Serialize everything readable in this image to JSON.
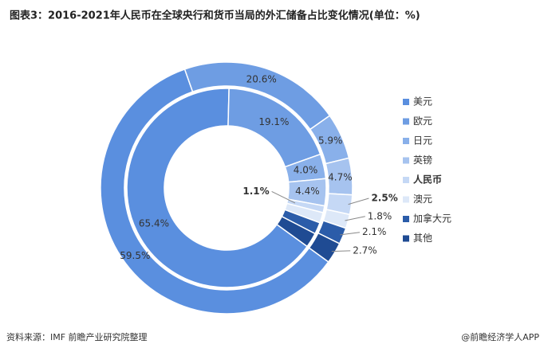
{
  "chart_data": {
    "type": "donut",
    "title": "图表3：2016-2021年人民币在全球央行和货币当局的外汇储备占比变化情况(单位：%)",
    "categories": [
      "美元",
      "欧元",
      "日元",
      "英镑",
      "人民币",
      "澳元",
      "加拿大元",
      "其他"
    ],
    "colors": [
      "#5a8fdf",
      "#6e9de3",
      "#89b0ea",
      "#a6c3ef",
      "#c5d8f5",
      "#dde8f8",
      "#2b5ca9",
      "#1f4b93"
    ],
    "series": [
      {
        "values": [
          65.4,
          19.1,
          4.0,
          4.4,
          1.1,
          1.7,
          1.9,
          2.4
        ],
        "value_labels": [
          "65.4%",
          "19.1%",
          "4.0%",
          "4.4%",
          "1.1%",
          null,
          null,
          null
        ]
      },
      {
        "values": [
          59.5,
          20.6,
          5.9,
          4.7,
          2.5,
          1.8,
          2.1,
          2.7
        ],
        "value_labels": [
          "59.5%",
          "20.6%",
          "5.9%",
          "4.7%",
          "2.5%",
          "1.8%",
          "2.1%",
          "2.7%"
        ]
      }
    ],
    "source": "资料来源：IMF 前瞻产业研究院整理",
    "credit": "@前瞻经济学人APP"
  }
}
